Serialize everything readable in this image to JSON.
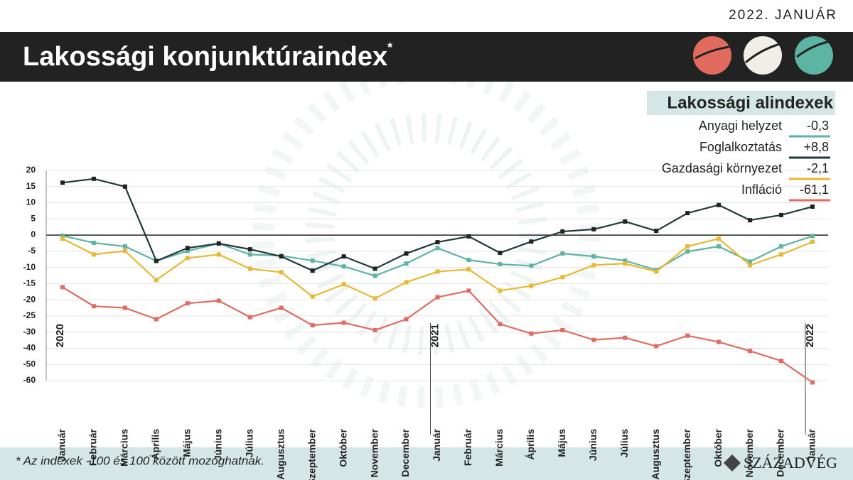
{
  "date_label": "2022. JANUÁR",
  "chart_data": {
    "type": "line",
    "title": "Lakossági konjunktúraindex",
    "title_marker": "*",
    "legend_title": "Lakossági alindexek",
    "legend_values": [
      "-0,3",
      "+8,8",
      "-2,1",
      "-61,1"
    ],
    "categories": [
      "Január",
      "Február",
      "Március",
      "Április",
      "Május",
      "Június",
      "Július",
      "Augusztus",
      "Szeptember",
      "Október",
      "November",
      "December",
      "Január",
      "Február",
      "Március",
      "Április",
      "Május",
      "Június",
      "Július",
      "Augusztus",
      "Szeptember",
      "Október",
      "November",
      "December",
      "Január"
    ],
    "years": [
      "2020",
      null,
      null,
      null,
      null,
      null,
      null,
      null,
      null,
      null,
      null,
      null,
      "2021",
      null,
      null,
      null,
      null,
      null,
      null,
      null,
      null,
      null,
      null,
      null,
      "2022"
    ],
    "series": [
      {
        "name": "Anyagi helyzet",
        "color": "#5bb5a2",
        "values": [
          -0.2,
          -2.4,
          -3.5,
          -8,
          -4.9,
          -2.6,
          -6,
          -6.4,
          -7.9,
          -9.7,
          -12.6,
          -8.8,
          -4,
          -7.7,
          -9,
          -9.5,
          -5.7,
          -6.6,
          -7.9,
          -10.8,
          -5.1,
          -3.5,
          -8.2,
          -3.5,
          -0.3
        ]
      },
      {
        "name": "Foglalkoztatás",
        "color": "#1f3a3a",
        "values": [
          16.2,
          17.4,
          15,
          -8,
          -4,
          -2.6,
          -4.4,
          -6.6,
          -11,
          -6.6,
          -10.4,
          -5.7,
          -2.2,
          -0.4,
          -5.5,
          -2,
          1.1,
          1.8,
          4.2,
          1.3,
          6.8,
          9.3,
          4.6,
          6.2,
          8.8
        ]
      },
      {
        "name": "Gazdasági környezet",
        "color": "#e8b830",
        "values": [
          -1.1,
          -6,
          -4.9,
          -13.9,
          -7.1,
          -6,
          -10.4,
          -11.5,
          -19,
          -15.2,
          -19.6,
          -14.6,
          -11.3,
          -10.6,
          -17.2,
          -15.7,
          -13,
          -9.3,
          -8.8,
          -11.3,
          -3.5,
          -1.1,
          -9.3,
          -6,
          -2.1
        ]
      },
      {
        "name": "Infláció",
        "color": "#e06b5e",
        "values": [
          -16.1,
          -22,
          -22.5,
          -26,
          -21.1,
          -20.3,
          -25.4,
          -22.5,
          -27.9,
          -27.1,
          -29.4,
          -26,
          -19.2,
          -17.2,
          -27.5,
          -30.9,
          -29.4,
          -34.8,
          -33.5,
          -38.7,
          -32.2,
          -36.1,
          -41.7,
          -47.8,
          -61.1
        ]
      }
    ],
    "ylim": [
      -60,
      20
    ],
    "yticks": [
      20,
      15,
      10,
      5,
      0,
      -5,
      -10,
      -15,
      -20,
      -25,
      -30,
      -40,
      -50,
      -60
    ],
    "grid": true
  },
  "footnote": "* Az indexek -100 és 100 között mozoghatnak.",
  "source": "SZÁZADVÉG"
}
